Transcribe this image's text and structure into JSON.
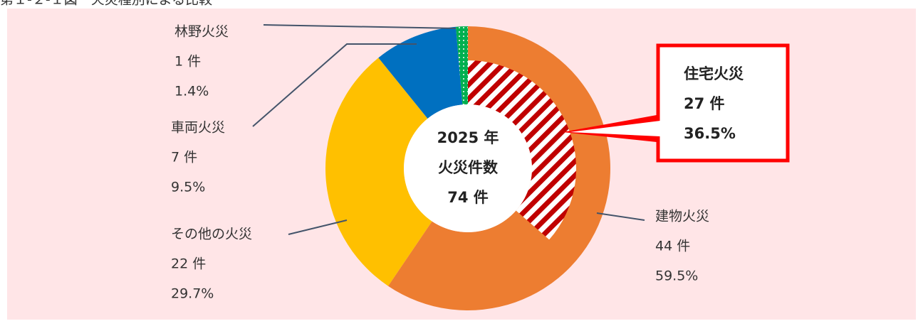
{
  "chart_data": {
    "type": "donut",
    "title": "第１-２-１図　火災種別による比較",
    "center_text": [
      "2025 年",
      "火災件数",
      "74 件"
    ],
    "categories": [
      "建物火災",
      "その他の火災",
      "車両火災",
      "林野火災"
    ],
    "values": [
      44,
      22,
      7,
      1
    ],
    "value_labels": [
      "44 件",
      "22 件",
      "7 件",
      "1 件"
    ],
    "percents": [
      59.5,
      29.7,
      9.5,
      1.4
    ],
    "percent_labels": [
      "59.5%",
      "29.7%",
      "9.5%",
      "1.4%"
    ],
    "colors": [
      "#ED7D31",
      "#FFC000",
      "#0070C0",
      "#00B050"
    ],
    "sub": {
      "name": "住宅火災",
      "value": 27,
      "value_label": "27 件",
      "percent": 36.5,
      "percent_label": "36.5%",
      "color": "#C00000"
    }
  }
}
